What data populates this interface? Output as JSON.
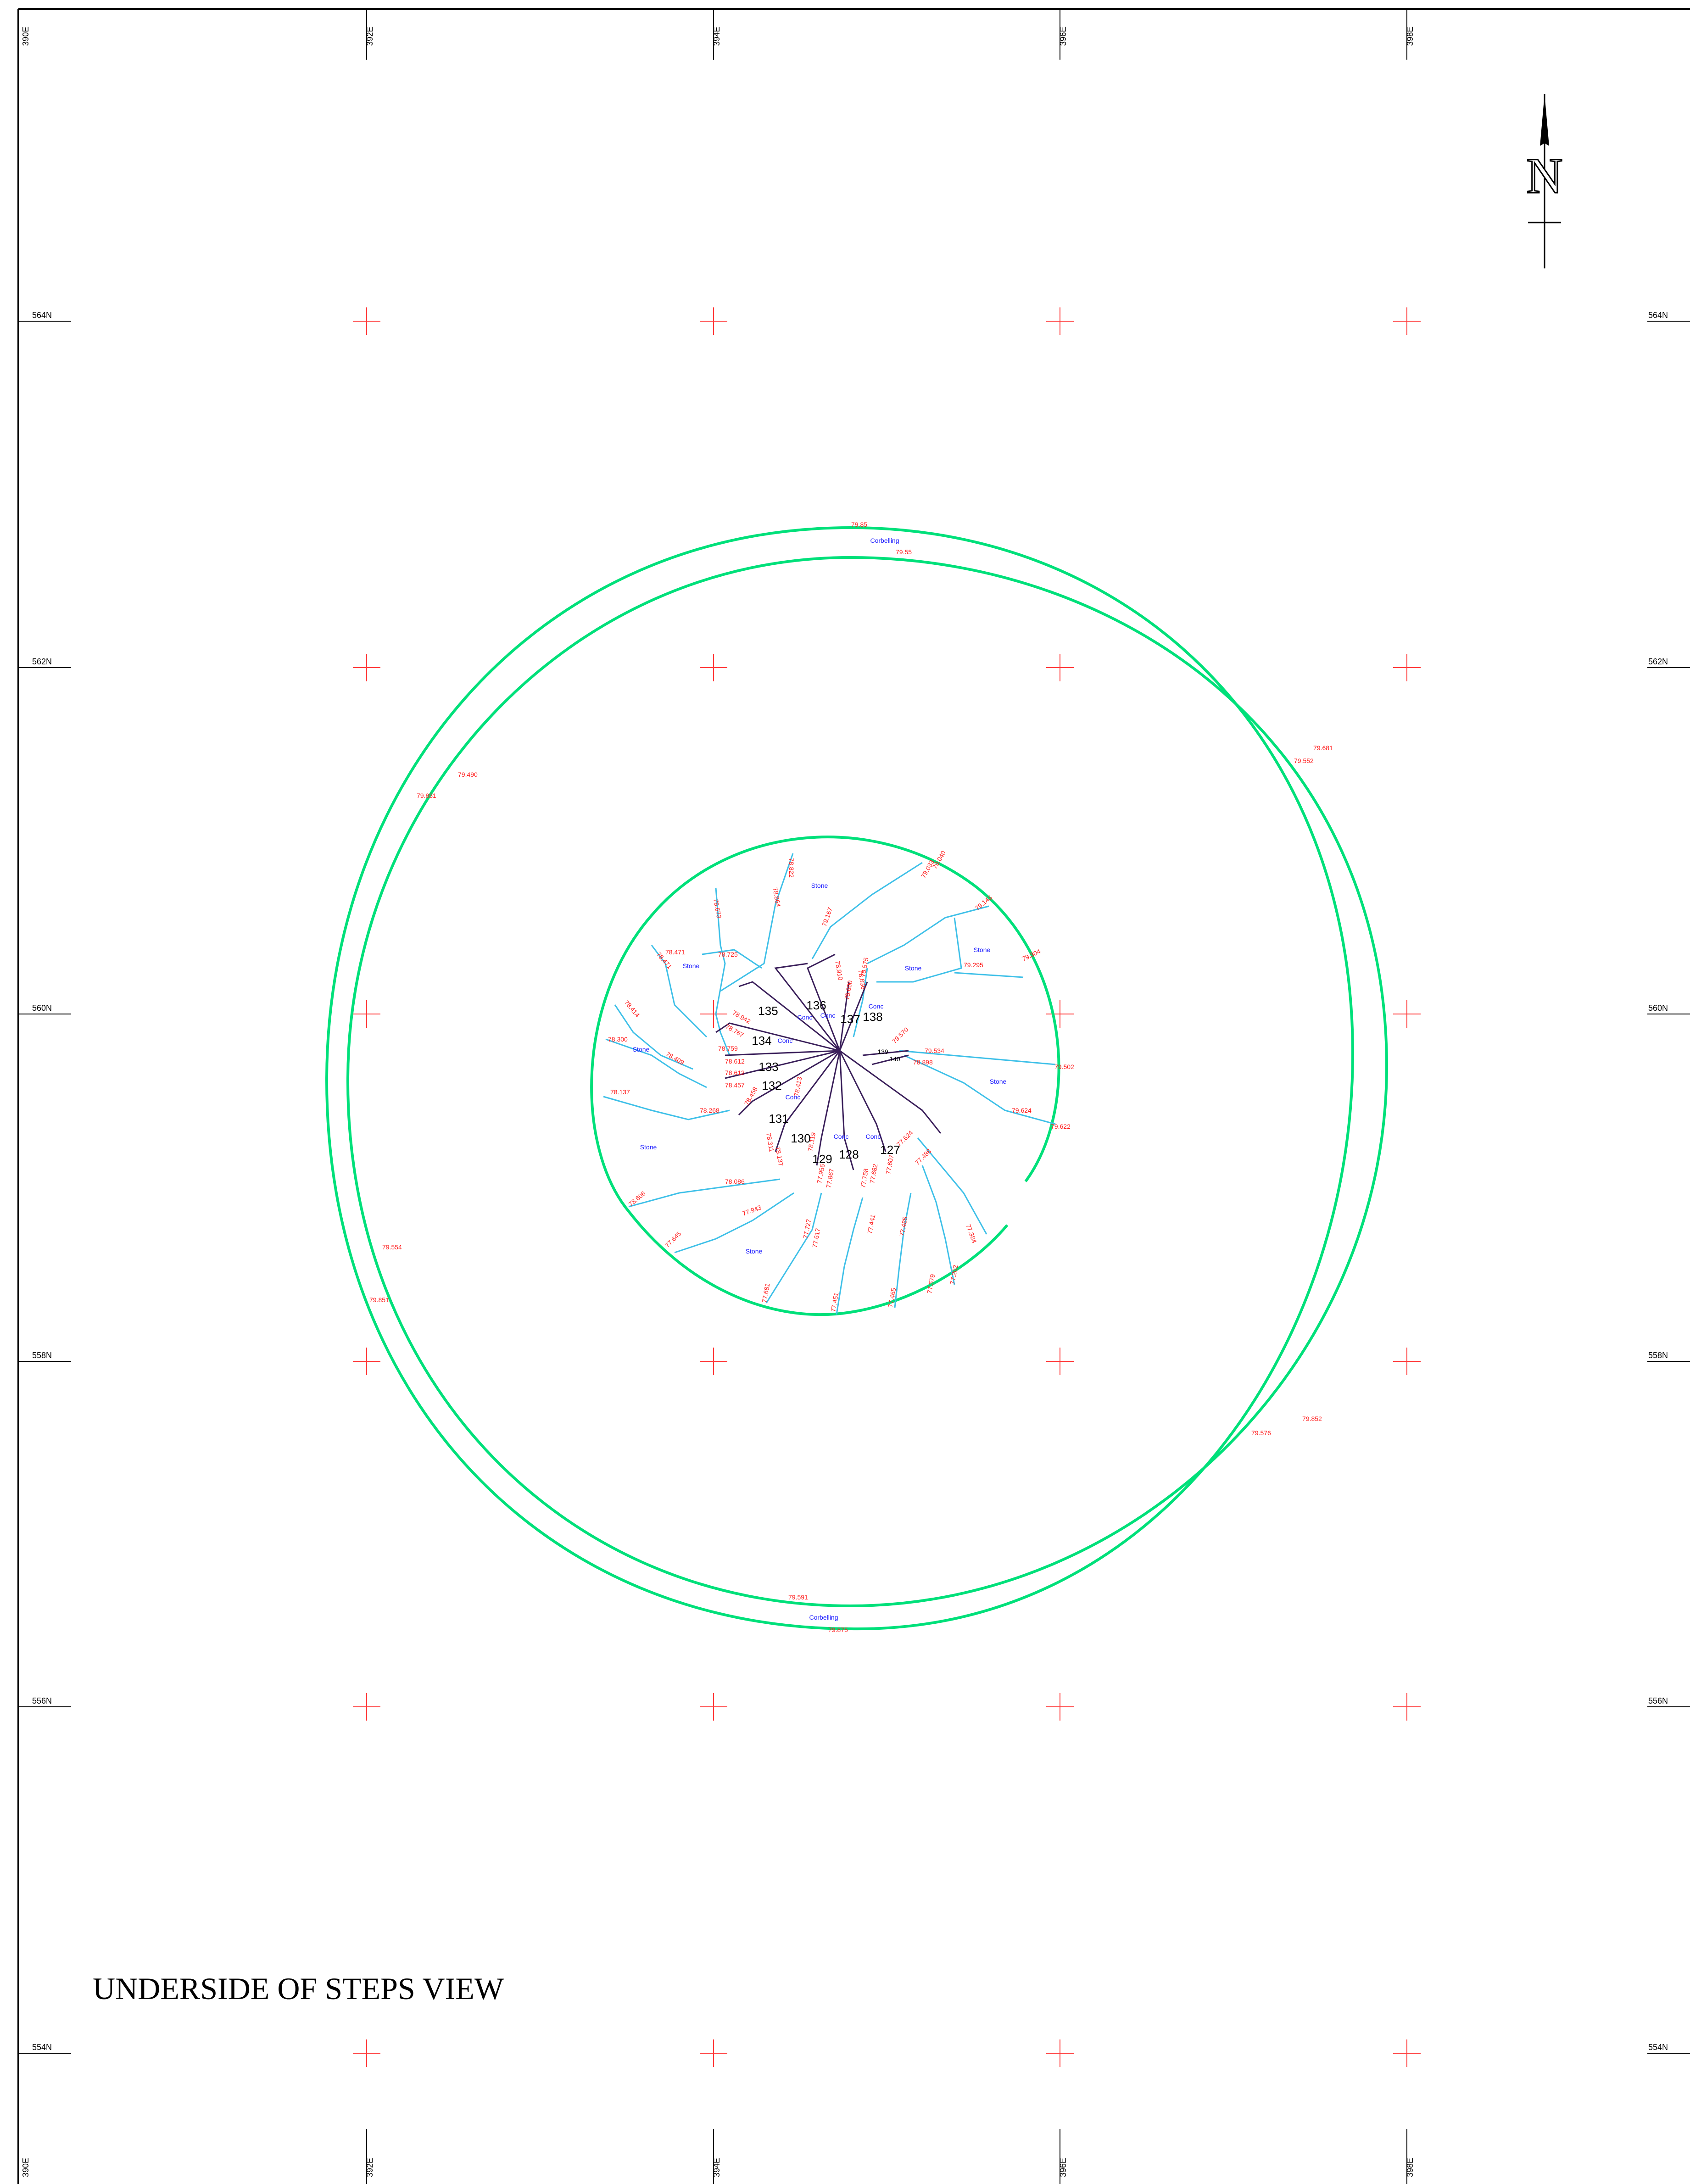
{
  "title": "UNDERSIDE OF STEPS VIEW",
  "north_label": "N",
  "colors": {
    "ring": "#00e07a",
    "stair_outline": "#3fc0e8",
    "step_line": "#3a1f5a",
    "elevation_text": "#ff1a1a",
    "material_text": "#1a1aff",
    "grid_cross": "#ff3b3b",
    "frame": "#000000"
  },
  "grid": {
    "easting_labels": [
      "390E",
      "392E",
      "394E",
      "396E",
      "398E"
    ],
    "northing_labels": [
      "564N",
      "562N",
      "560N",
      "558N",
      "556N",
      "554N"
    ]
  },
  "materials": {
    "corbelling_top": "Corbelling",
    "corbelling_bottom": "Corbelling",
    "stone_labels": [
      "Stone",
      "Stone",
      "Stone",
      "Stone",
      "Stone",
      "Stone",
      "Stone",
      "Stone"
    ],
    "conc_labels": [
      "Conc",
      "Conc",
      "Conc",
      "Conc",
      "Conc",
      "Conc",
      "Conc"
    ]
  },
  "steps": [
    "127",
    "128",
    "129",
    "130",
    "131",
    "132",
    "133",
    "134",
    "135",
    "136",
    "137",
    "138",
    "139",
    "140"
  ],
  "elevations": {
    "outer": [
      "79.85",
      "79.55",
      "79.681",
      "79.552",
      "79.490",
      "79.831",
      "79.554",
      "79.851",
      "79.852",
      "79.576",
      "79.591",
      "79.875"
    ],
    "stair": [
      "78.822",
      "78.864",
      "78.673",
      "79.033",
      "79.040",
      "79.167",
      "79.143",
      "79.304",
      "79.295",
      "78.471",
      "78.471",
      "78.725",
      "78.414",
      "78.300",
      "78.409",
      "78.137",
      "78.942",
      "78.767",
      "78.759",
      "78.612",
      "78.612",
      "78.457",
      "78.458",
      "78.268",
      "78.311",
      "78.137",
      "78.086",
      "78.606",
      "77.943",
      "77.645",
      "77.681",
      "77.727",
      "77.617",
      "77.451",
      "77.441",
      "77.485",
      "77.465",
      "77.579",
      "77.202",
      "77.384",
      "77.624",
      "77.488",
      "79.570",
      "79.534",
      "79.502",
      "79.624",
      "79.622",
      "78.898",
      "78.910",
      "78.836",
      "78.600",
      "78.575",
      "78.413",
      "78.119",
      "77.956",
      "77.867",
      "77.758",
      "77.682",
      "77.607"
    ]
  }
}
